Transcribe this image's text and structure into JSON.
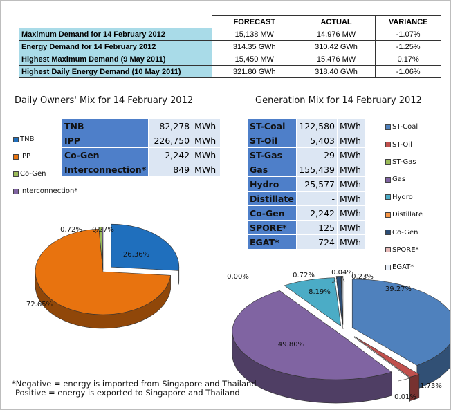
{
  "summary": {
    "headers": [
      "",
      "FORECAST",
      "ACTUAL",
      "VARIANCE"
    ],
    "rows": [
      {
        "label": "Maximum Demand for 14 February 2012",
        "forecast": "15,138  MW",
        "actual": "14,976  MW",
        "variance": "-1.07%"
      },
      {
        "label": "Energy Demand for 14 February 2012",
        "forecast": "314.35  GWh",
        "actual": "310.42  GWh",
        "variance": "-1.25%"
      },
      {
        "label": "Highest Maximum Demand (9 May 2011)",
        "forecast": "15,450  MW",
        "actual": "15,476  MW",
        "variance": "0.17%"
      },
      {
        "label": "Highest Daily Energy Demand (10 May 2011)",
        "forecast": "321.80  GWh",
        "actual": "318.40  GWh",
        "variance": "-1.06%"
      }
    ]
  },
  "owners": {
    "title": "Daily Owners' Mix for 14 February 2012",
    "table": [
      {
        "name": "TNB",
        "value": "82,278",
        "unit": "MWh"
      },
      {
        "name": "IPP",
        "value": "226,750",
        "unit": "MWh"
      },
      {
        "name": "Co-Gen",
        "value": "2,242",
        "unit": "MWh"
      },
      {
        "name": "Interconnection*",
        "value": "849",
        "unit": "MWh"
      }
    ]
  },
  "generation": {
    "title": "Generation Mix for 14 February 2012",
    "table": [
      {
        "name": "ST-Coal",
        "value": "122,580",
        "unit": "MWh"
      },
      {
        "name": "ST-Oil",
        "value": "5,403",
        "unit": "MWh"
      },
      {
        "name": "ST-Gas",
        "value": "29",
        "unit": "MWh"
      },
      {
        "name": "Gas",
        "value": "155,439",
        "unit": "MWh"
      },
      {
        "name": "Hydro",
        "value": "25,577",
        "unit": "MWh"
      },
      {
        "name": "Distillate",
        "value": "-",
        "unit": "MWh"
      },
      {
        "name": "Co-Gen",
        "value": "2,242",
        "unit": "MWh"
      },
      {
        "name": "SPORE*",
        "value": "125",
        "unit": "MWh"
      },
      {
        "name": "EGAT*",
        "value": "724",
        "unit": "MWh"
      }
    ]
  },
  "note": {
    "line1": "*Negative = energy is imported from Singapore and Thailand",
    "line2": "Positive = energy is exported to Singapore and Thailand"
  },
  "chart_data": [
    {
      "type": "pie",
      "title": "Daily Owners' Mix for 14 February 2012",
      "legend_position": "left",
      "categories": [
        "TNB",
        "IPP",
        "Co-Gen",
        "Interconnection*"
      ],
      "values": [
        26.36,
        72.65,
        0.72,
        0.27
      ],
      "labels": [
        "26.36%",
        "72.65%",
        "0.72%",
        "0.27%"
      ],
      "colors": [
        "#1f6fbd",
        "#e8730f",
        "#9bbb59",
        "#8064a2"
      ]
    },
    {
      "type": "pie",
      "title": "Generation Mix for 14 February 2012",
      "legend_position": "right",
      "categories": [
        "ST-Coal",
        "ST-Oil",
        "ST-Gas",
        "Gas",
        "Hydro",
        "Distillate",
        "Co-Gen",
        "SPORE*",
        "EGAT*"
      ],
      "values": [
        39.27,
        1.73,
        0.01,
        49.8,
        8.19,
        0.0,
        0.72,
        0.04,
        0.23
      ],
      "labels": [
        "39.27%",
        "1.73%",
        "0.01%",
        "49.80%",
        "8.19%",
        "0.00%",
        "0.72%",
        "0.04%",
        "0.23%"
      ],
      "colors": [
        "#4f81bd",
        "#c0504d",
        "#9bbb59",
        "#8064a2",
        "#4bacc6",
        "#f79646",
        "#2c4d75",
        "#e6b9b8",
        "#e7eef8"
      ]
    }
  ]
}
